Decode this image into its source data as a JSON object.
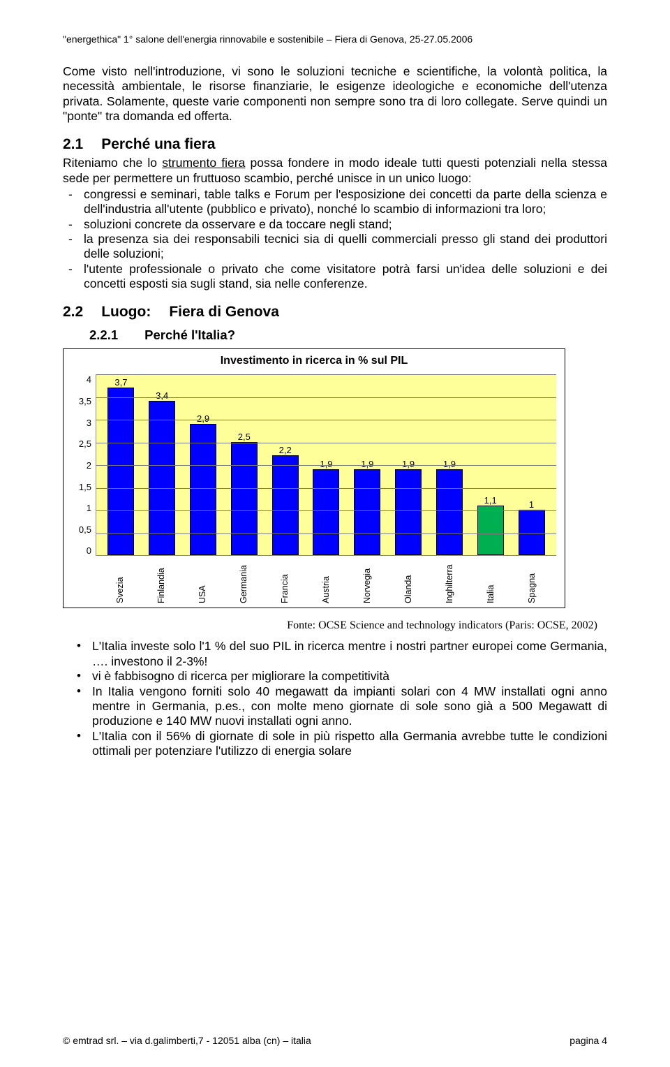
{
  "header": "\"energethica\" 1° salone dell'energia rinnovabile e sostenibile – Fiera di Genova, 25-27.05.2006",
  "intro": "Come visto nell'introduzione, vi sono le soluzioni tecniche e scientifiche, la volontà politica, la necessità ambientale, le risorse finanziarie, le esigenze ideologiche e economiche dell'utenza privata. Solamente, queste varie componenti non sempre sono tra di loro collegate. Serve quindi un \"ponte\" tra domanda ed offerta.",
  "s21": {
    "num": "2.1",
    "title": "Perché una fiera",
    "lead_a": "Riteniamo che lo ",
    "lead_u": "strumento fiera",
    "lead_b": " possa fondere in modo ideale tutti questi potenziali nella stessa sede per permettere un fruttuoso scambio, perché unisce in un unico luogo:",
    "items": [
      "congressi e seminari, table talks e Forum per l'esposizione dei concetti da parte della scienza e dell'industria all'utente (pubblico e privato), nonché lo scambio di informazioni tra loro;",
      "soluzioni concrete da osservare e da toccare negli stand;",
      "la presenza sia dei responsabili tecnici sia di quelli commerciali presso gli stand dei produttori delle soluzioni;",
      "l'utente professionale o privato che come visitatore potrà farsi un'idea delle soluzioni e dei concetti esposti sia sugli stand, sia nelle conferenze."
    ]
  },
  "s22": {
    "num": "2.2",
    "title": "Luogo:",
    "title2": "Fiera di Genova"
  },
  "s221": {
    "num": "2.2.1",
    "title": "Perché l'Italia?"
  },
  "chart": {
    "title": "Investimento in ricerca in % sul PIL",
    "categories": [
      "Svezia",
      "Finlandia",
      "USA",
      "Germania",
      "Francia",
      "Austria",
      "Norvegia",
      "Olanda",
      "Inghilterra",
      "Italia",
      "Spagna"
    ],
    "values": [
      3.7,
      3.4,
      2.9,
      2.5,
      2.2,
      1.9,
      1.9,
      1.9,
      1.9,
      1.1,
      1.0
    ],
    "value_labels": [
      "3,7",
      "3,4",
      "2,9",
      "2,5",
      "2,2",
      "1,9",
      "1,9",
      "1,9",
      "1,9",
      "1,1",
      "1"
    ],
    "bar_colors": [
      "#0000ff",
      "#0000ff",
      "#0000ff",
      "#0000ff",
      "#0000ff",
      "#0000ff",
      "#0000ff",
      "#0000ff",
      "#0000ff",
      "#00b050",
      "#0000ff"
    ],
    "y_max": 4.0,
    "y_ticks": [
      "4",
      "3,5",
      "3",
      "2,5",
      "2",
      "1,5",
      "1",
      "0,5",
      "0"
    ],
    "background_color": "#ffff99",
    "grid_color": "#777777"
  },
  "source": "Fonte: OCSE Science and technology indicators (Paris: OCSE, 2002)",
  "bullets": {
    "b1a": "L'Italia investe solo l'1 % del suo PIL in ricerca mentre i nostri partner europei come Germania, …. investono il 2-3%!",
    "b2a": "vi è ",
    "b2u": "fabbisogno di ricerca per migliorare la competitività",
    "b3": "In Italia vengono forniti solo 40 megawatt da impianti solari con 4 MW installati ogni anno mentre in Germania, p.es., con molte meno giornate di sole sono già a 500 Megawatt di produzione e 140 MW nuovi installati ogni anno.",
    "b4a": "L'Italia",
    "b4b": " con il 56% di giornate di sole in più rispetto alla Germania avrebbe tutte le ",
    "b4u": "condizioni ottimali per potenziare l'utilizzo di energia solare"
  },
  "footer": {
    "left": "© emtrad srl. – via d.galimberti,7 - 12051 alba (cn) – italia",
    "right": "pagina 4"
  }
}
